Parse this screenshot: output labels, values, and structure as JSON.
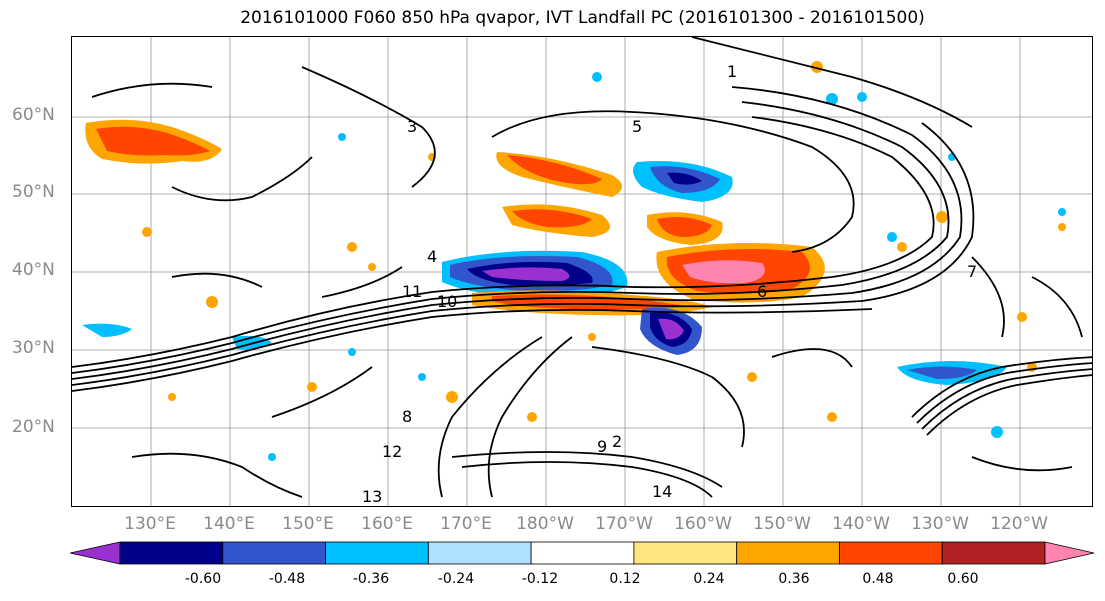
{
  "title": "2016101000 F060 850 hPa qvapor, IVT Landfall PC (2016101300 - 2016101500)",
  "map": {
    "lat_labels": [
      "60°N",
      "50°N",
      "40°N",
      "30°N",
      "20°N"
    ],
    "lon_labels": [
      "130°E",
      "140°E",
      "150°E",
      "160°E",
      "170°E",
      "180°W",
      "170°W",
      "160°W",
      "150°W",
      "140°W",
      "130°W",
      "120°W"
    ],
    "contour_labels": [
      "1",
      "2",
      "3",
      "4",
      "5",
      "6",
      "7",
      "8",
      "9",
      "10",
      "11",
      "12",
      "13",
      "14"
    ]
  },
  "colorbar": {
    "ticks": [
      "-0.60",
      "-0.48",
      "-0.36",
      "-0.24",
      "-0.12",
      "0.12",
      "0.24",
      "0.36",
      "0.48",
      "0.60"
    ],
    "colors": [
      "#9b30d0",
      "#00008b",
      "#3355cc",
      "#00bfff",
      "#b0e0ff",
      "#ffffff",
      "#ffe680",
      "#ffa500",
      "#ff4500",
      "#b22222",
      "#ff85b0"
    ]
  }
}
